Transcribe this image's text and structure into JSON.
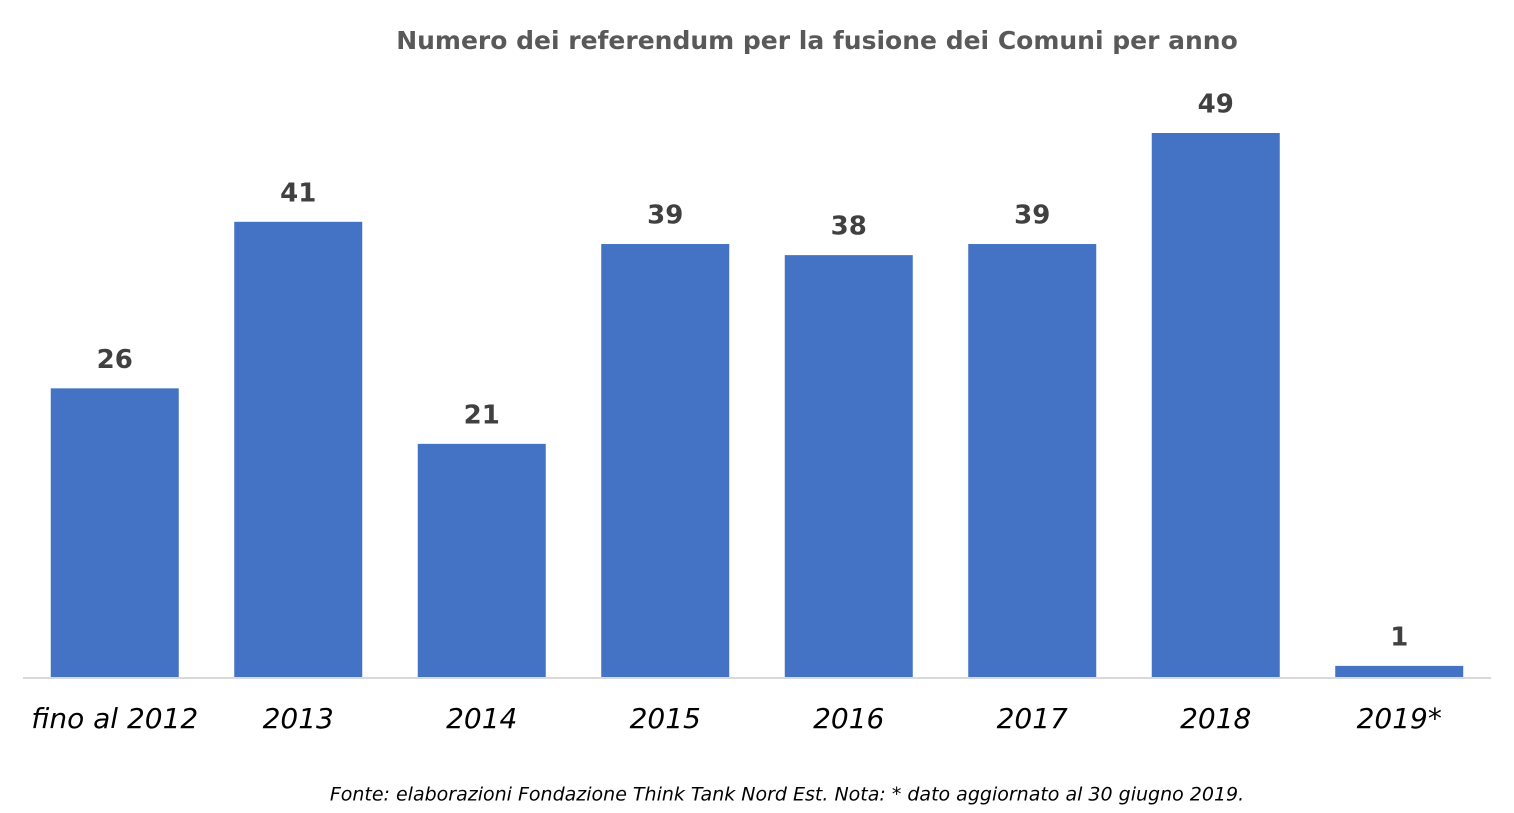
{
  "chart_data": {
    "type": "bar",
    "title": "Numero dei referendum per la fusione dei Comuni per anno",
    "categories": [
      "fino al 2012",
      "2013",
      "2014",
      "2015",
      "2016",
      "2017",
      "2018",
      "2019*"
    ],
    "values": [
      26,
      41,
      21,
      39,
      38,
      39,
      49,
      1
    ],
    "color": "#4472c4",
    "note": "Fonte: elaborazioni Fondazione Think Tank Nord Est. Nota: * dato aggiornato al 30 giugno 2019."
  }
}
